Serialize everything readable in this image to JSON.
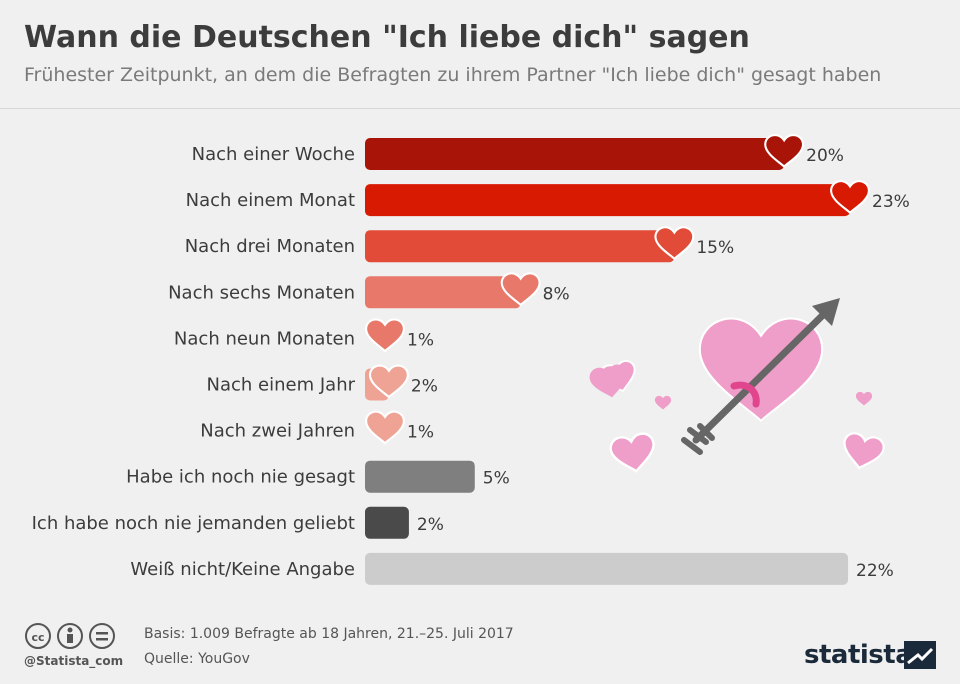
{
  "header": {
    "title": "Wann die Deutschen \"Ich liebe dich\" sagen",
    "subtitle": "Frühester Zeitpunkt, an dem die Befragten zu ihrem Partner \"Ich liebe dich\" gesagt haben"
  },
  "chart_data": {
    "type": "bar",
    "orientation": "horizontal",
    "title": "Wann die Deutschen \"Ich liebe dich\" sagen",
    "subtitle": "Frühester Zeitpunkt, an dem die Befragten zu ihrem Partner \"Ich liebe dich\" gesagt haben",
    "categories": [
      "Nach einer Woche",
      "Nach einem Monat",
      "Nach drei Monaten",
      "Nach sechs Monaten",
      "Nach neun Monaten",
      "Nach einem Jahr",
      "Nach zwei Jahren",
      "Habe ich noch nie gesagt",
      "Ich habe noch nie jemanden geliebt",
      "Weiß nicht/Keine Angabe"
    ],
    "values": [
      20,
      23,
      15,
      8,
      1,
      2,
      1,
      5,
      2,
      22
    ],
    "value_labels": [
      "20%",
      "23%",
      "15%",
      "8%",
      "1%",
      "2%",
      "1%",
      "5%",
      "2%",
      "22%"
    ],
    "colors": [
      "#a91408",
      "#d81a03",
      "#e14b37",
      "#e8786a",
      "#e8786a",
      "#efa394",
      "#efa394",
      "#7f7f7f",
      "#4a4a4a",
      "#cccccc"
    ],
    "heart_markers": [
      true,
      true,
      true,
      true,
      true,
      true,
      true,
      false,
      false,
      false
    ],
    "xlim": [
      0,
      23
    ],
    "unit": "%",
    "xlabel": "",
    "ylabel": ""
  },
  "footer": {
    "basis": "Basis: 1.009 Befragte ab 18 Jahren, 21.–25. Juli 2017",
    "source": "Quelle: YouGov",
    "handle": "@Statista_com",
    "brand": "statista"
  },
  "colors": {
    "background": "#f0f0f0",
    "illustration_pink": "#ef9ec9",
    "arrow_gray": "#666666"
  }
}
